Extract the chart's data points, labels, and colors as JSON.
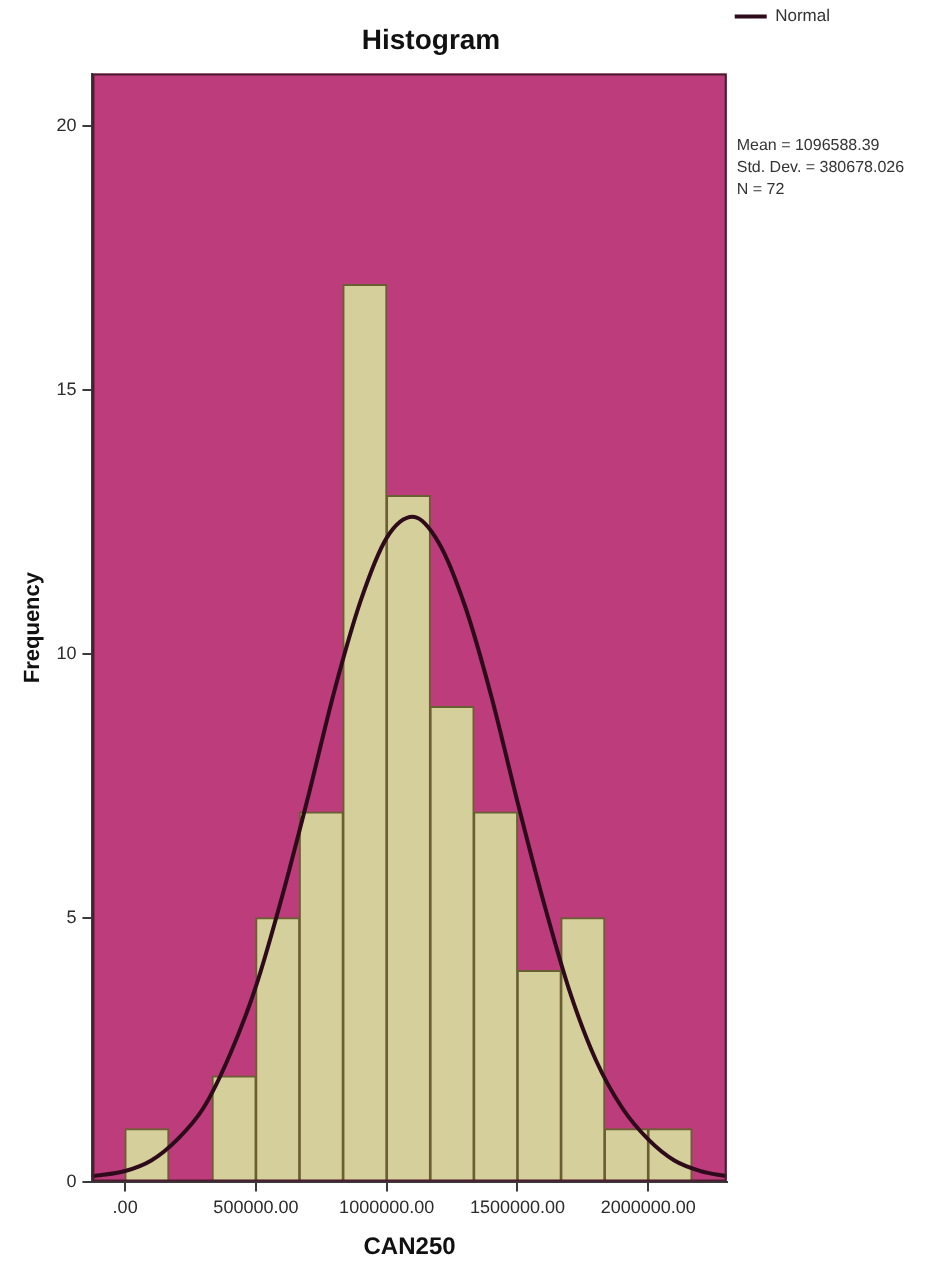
{
  "chart_data": {
    "type": "histogram",
    "title": "Histogram",
    "xlabel": "CAN250",
    "ylabel": "Frequency",
    "bins": [
      0,
      166667,
      333333,
      500000,
      666667,
      833333,
      1000000,
      1166667,
      1333333,
      1500000,
      1666667,
      1833333,
      2000000,
      2166667
    ],
    "series": [
      {
        "type": "histogram",
        "color": "#d5cf9b",
        "values": [
          1,
          0,
          2,
          5,
          7,
          17,
          13,
          9,
          7,
          4,
          5,
          1,
          1
        ]
      },
      {
        "type": "line",
        "name": "Normal",
        "color": "#2e0b1a",
        "x": [
          -125000,
          0,
          100000,
          200000,
          300000,
          400000,
          500000,
          600000,
          700000,
          800000,
          900000,
          1000000,
          1100000,
          1200000,
          1300000,
          1400000,
          1500000,
          1600000,
          1700000,
          1800000,
          1900000,
          2000000,
          2100000,
          2200000,
          2300000
        ],
        "values": [
          0.1,
          0.2,
          0.4,
          0.8,
          1.4,
          2.4,
          3.7,
          5.4,
          7.3,
          9.3,
          11.0,
          12.2,
          12.6,
          12.1,
          10.9,
          9.2,
          7.2,
          5.3,
          3.6,
          2.3,
          1.4,
          0.8,
          0.4,
          0.2,
          0.1
        ]
      }
    ],
    "xlim": [
      -125000,
      2300000
    ],
    "xticks": [
      {
        "value": 0,
        "label": ".00"
      },
      {
        "value": 500000,
        "label": "500000.00"
      },
      {
        "value": 1000000,
        "label": "1000000.00"
      },
      {
        "value": 1500000,
        "label": "1500000.00"
      },
      {
        "value": 2000000,
        "label": "2000000.00"
      }
    ],
    "ylim": [
      0,
      21
    ],
    "yticks": [
      0,
      5,
      10,
      15,
      20
    ],
    "grid": false,
    "legend": "right top",
    "marker": "none",
    "annotations": [
      "Mean = 1096588.39",
      "Std. Dev. = 380678.026",
      "N = 72"
    ]
  }
}
